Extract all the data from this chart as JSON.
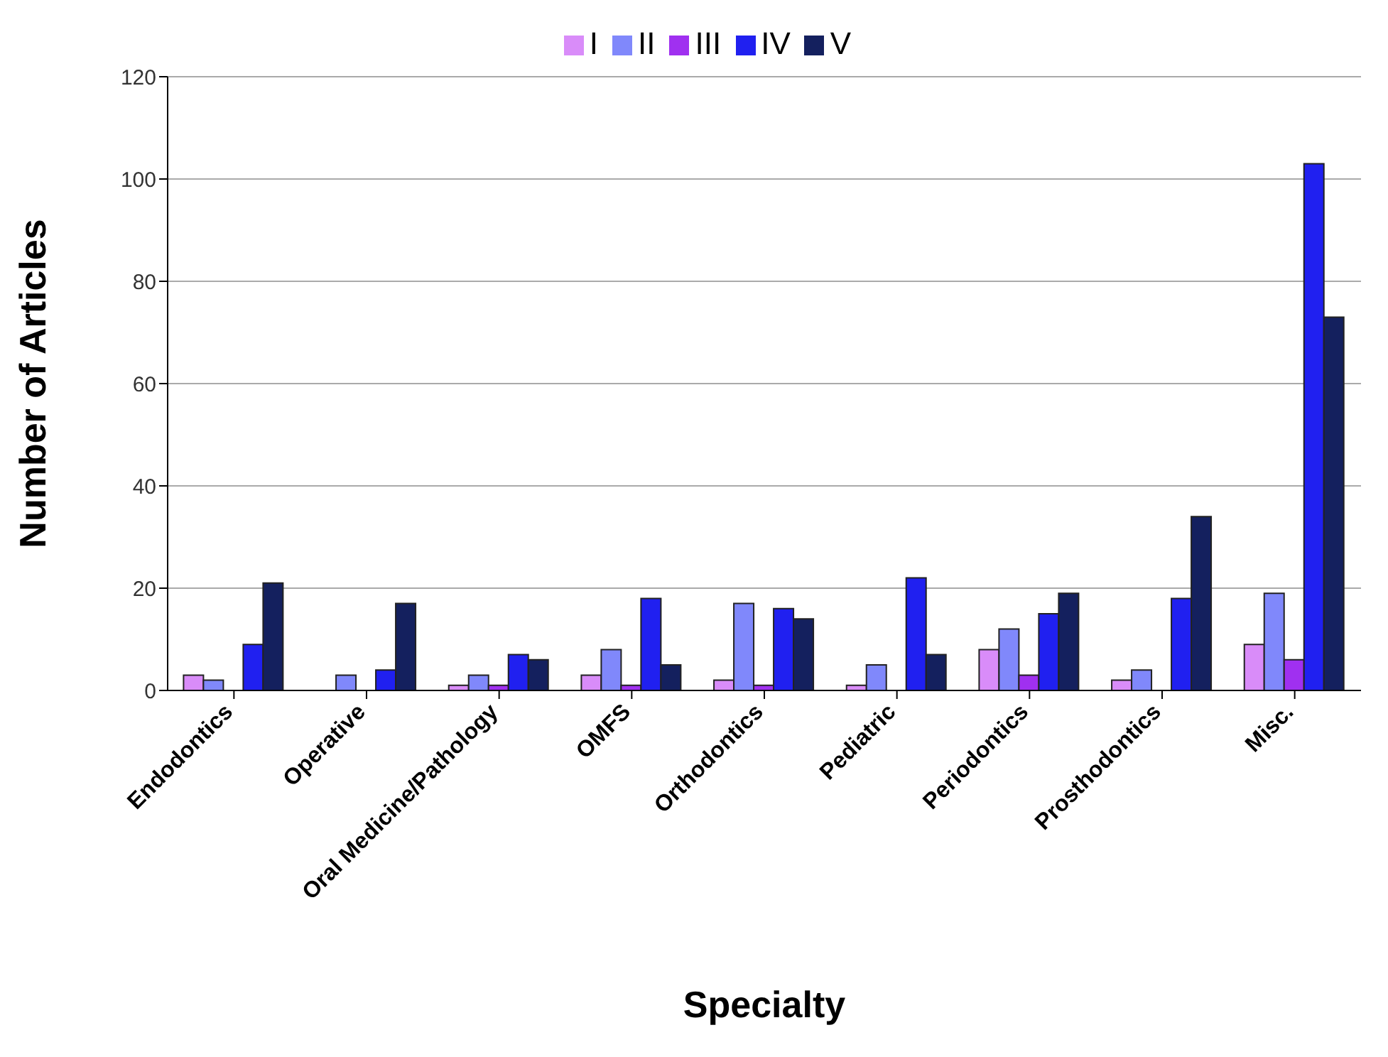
{
  "chart_data": {
    "type": "bar",
    "xlabel": "Specialty",
    "ylabel": "Number of Articles",
    "categories": [
      "Endodontics",
      "Operative",
      "Oral Medicine/Pathology",
      "OMFS",
      "Orthodontics",
      "Pediatric",
      "Periodontics",
      "Prosthodontics",
      "Misc."
    ],
    "series": [
      {
        "name": "I",
        "color": "#d98cf9",
        "values": [
          3,
          0,
          1,
          3,
          2,
          1,
          8,
          2,
          9
        ]
      },
      {
        "name": "II",
        "color": "#8088fb",
        "values": [
          2,
          3,
          3,
          8,
          17,
          5,
          12,
          4,
          19
        ]
      },
      {
        "name": "III",
        "color": "#a030f0",
        "values": [
          0,
          0,
          1,
          1,
          1,
          0,
          3,
          0,
          6
        ]
      },
      {
        "name": "IV",
        "color": "#2020f0",
        "values": [
          9,
          4,
          7,
          18,
          16,
          22,
          15,
          18,
          103
        ]
      },
      {
        "name": "V",
        "color": "#14205e",
        "values": [
          21,
          17,
          6,
          5,
          14,
          7,
          19,
          34,
          73
        ]
      }
    ],
    "ylim": [
      0,
      120
    ],
    "yticks": [
      0,
      20,
      40,
      60,
      80,
      100,
      120
    ],
    "grid": "y",
    "legend": "top"
  }
}
